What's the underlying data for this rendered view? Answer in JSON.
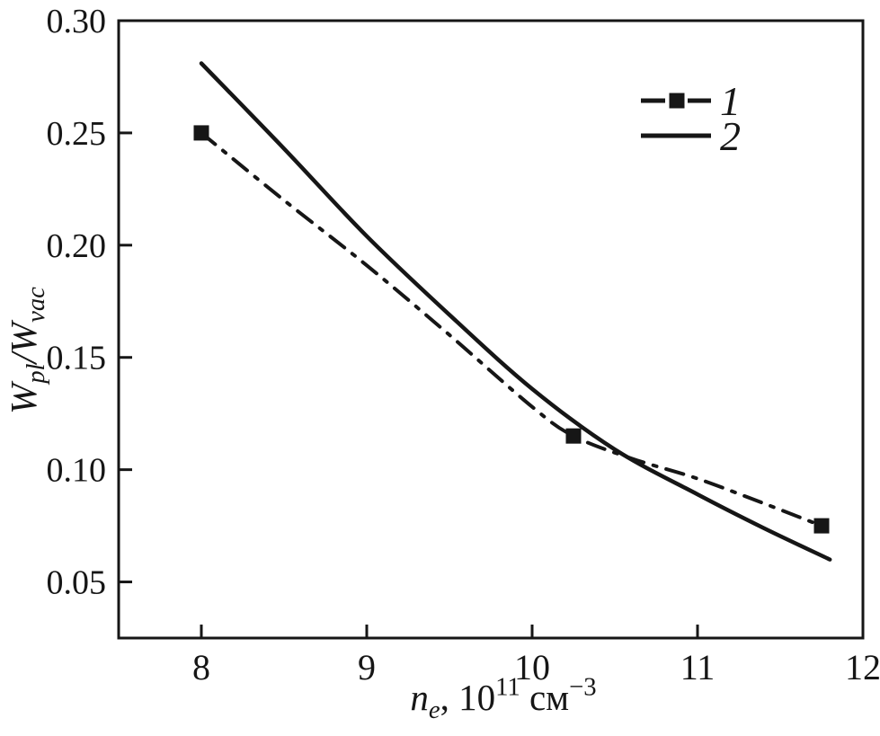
{
  "chart_data": {
    "type": "line",
    "title": "",
    "xlabel_parts": [
      {
        "t": "n",
        "s": "i"
      },
      {
        "t": "e",
        "s": "isub"
      },
      {
        "t": ", 10",
        "s": "n"
      },
      {
        "t": "11",
        "s": "sup"
      },
      {
        "t": " см",
        "s": "n"
      },
      {
        "t": "−3",
        "s": "sup"
      }
    ],
    "ylabel_parts": [
      {
        "t": "W",
        "s": "i"
      },
      {
        "t": "pl",
        "s": "isub"
      },
      {
        "t": "/",
        "s": "i"
      },
      {
        "t": "W",
        "s": "i"
      },
      {
        "t": "vac",
        "s": "isub"
      }
    ],
    "xlim": [
      7.5,
      12
    ],
    "ylim": [
      0.025,
      0.3
    ],
    "x_ticks": [
      "8",
      "9",
      "10",
      "11",
      "12"
    ],
    "y_ticks": [
      "0.30",
      "0.25",
      "0.20",
      "0.15",
      "0.10",
      "0.05"
    ],
    "grid": false,
    "legend_position": "upper-right-inside",
    "series": [
      {
        "name": "1",
        "style": "dash-dot",
        "marker": "square",
        "points": [
          [
            8,
            0.25
          ],
          [
            8.5,
            0.22
          ],
          [
            9,
            0.191
          ],
          [
            9.5,
            0.16
          ],
          [
            10,
            0.128
          ],
          [
            10.25,
            0.115
          ],
          [
            10.6,
            0.105
          ],
          [
            11,
            0.096
          ],
          [
            11.4,
            0.085
          ],
          [
            11.75,
            0.075
          ]
        ],
        "marker_points": [
          [
            8,
            0.25
          ],
          [
            10.25,
            0.115
          ],
          [
            11.75,
            0.075
          ]
        ]
      },
      {
        "name": "2",
        "style": "solid",
        "marker": "none",
        "points": [
          [
            8,
            0.281
          ],
          [
            8.5,
            0.243
          ],
          [
            9,
            0.204
          ],
          [
            9.5,
            0.169
          ],
          [
            10,
            0.136
          ],
          [
            10.5,
            0.109
          ],
          [
            11,
            0.089
          ],
          [
            11.4,
            0.074
          ],
          [
            11.8,
            0.06
          ]
        ],
        "marker_points": []
      }
    ],
    "colors": {
      "line": "#161616",
      "background": "#ffffff"
    }
  }
}
